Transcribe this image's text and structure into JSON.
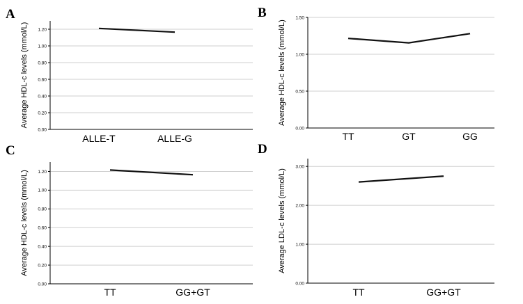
{
  "chart_data": [
    {
      "panel": "A",
      "type": "line",
      "ylabel": "Average HDL-c levels (mmol/L)",
      "categories": [
        "ALLE-T",
        "ALLE-G"
      ],
      "values": [
        1.21,
        1.165
      ],
      "yticks": [
        "0.00",
        "0.20",
        "0.40",
        "0.60",
        "0.80",
        "1.00",
        "1.20"
      ],
      "ylim": [
        0,
        1.3
      ],
      "grid": true
    },
    {
      "panel": "B",
      "type": "line",
      "ylabel": "Average HDL-c levels (mmol/L)",
      "categories": [
        "TT",
        "GT",
        "GG"
      ],
      "values": [
        1.215,
        1.155,
        1.28
      ],
      "yticks": [
        "0.00",
        "0.50",
        "1.00",
        "1.50"
      ],
      "ylim": [
        0,
        1.5
      ],
      "grid": true
    },
    {
      "panel": "C",
      "type": "line",
      "ylabel": "Average HDL-c levels (mmol/L)",
      "categories": [
        "TT",
        "GG+GT"
      ],
      "values": [
        1.215,
        1.165
      ],
      "yticks": [
        "0.00",
        "0.20",
        "0.40",
        "0.60",
        "0.80",
        "1.00",
        "1.20"
      ],
      "ylim": [
        0,
        1.3
      ],
      "grid": true
    },
    {
      "panel": "D",
      "type": "line",
      "ylabel": "Average LDL-c levels (mmol/L)",
      "categories": [
        "TT",
        "GG+GT"
      ],
      "values": [
        2.6,
        2.75
      ],
      "yticks": [
        "0.00",
        "1.00",
        "2.00",
        "3.00"
      ],
      "ylim": [
        0,
        3.2
      ],
      "grid": true
    }
  ]
}
